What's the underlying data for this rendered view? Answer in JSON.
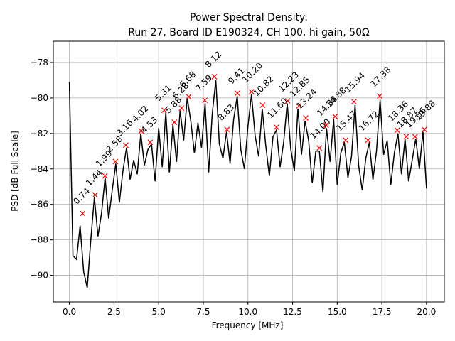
{
  "chart_data": {
    "type": "line",
    "title": [
      "Power Spectral Density:",
      "Run 27, Board ID E190324, CH 100, hi gain, 50Ω"
    ],
    "xlabel": "Frequency [MHz]",
    "ylabel": "PSD [dB Full Scale]",
    "color": "#000000",
    "grid": true,
    "xlim": [
      -0.9,
      21.0
    ],
    "ylim": [
      -91.5,
      -76.8
    ],
    "xticks": [
      {
        "value": 0,
        "label": "0.0"
      },
      2.5,
      {
        "value": 5,
        "label": "5.0"
      },
      7.5,
      {
        "value": 10,
        "label": "10.0"
      },
      12.5,
      {
        "value": 15,
        "label": "15.0"
      },
      17.5,
      {
        "value": 20,
        "label": "20.0"
      }
    ],
    "yticks": [
      {
        "value": -90,
        "label": "−90"
      },
      {
        "value": -88,
        "label": "−88"
      },
      {
        "value": -86,
        "label": "−86"
      },
      {
        "value": -84,
        "label": "−84"
      },
      {
        "value": -82,
        "label": "−82"
      },
      {
        "value": -80,
        "label": "−80"
      },
      {
        "value": -78,
        "label": "−78"
      }
    ],
    "x": [
      0.0,
      0.2,
      0.4,
      0.6,
      0.8,
      1.0,
      1.2,
      1.4,
      1.6,
      1.8,
      2.0,
      2.2,
      2.4,
      2.6,
      2.8,
      3.0,
      3.2,
      3.4,
      3.6,
      3.8,
      4.0,
      4.2,
      4.4,
      4.6,
      4.8,
      5.0,
      5.2,
      5.4,
      5.6,
      5.8,
      6.0,
      6.2,
      6.4,
      6.6,
      6.8,
      7.0,
      7.2,
      7.4,
      7.6,
      7.8,
      8.0,
      8.2,
      8.4,
      8.6,
      8.8,
      9.0,
      9.2,
      9.4,
      9.6,
      9.8,
      10.0,
      10.2,
      10.4,
      10.6,
      10.8,
      11.0,
      11.2,
      11.4,
      11.6,
      11.8,
      12.0,
      12.2,
      12.4,
      12.6,
      12.8,
      13.0,
      13.2,
      13.4,
      13.6,
      13.8,
      14.0,
      14.2,
      14.4,
      14.6,
      14.8,
      15.0,
      15.2,
      15.4,
      15.6,
      15.8,
      16.0,
      16.2,
      16.4,
      16.6,
      16.8,
      17.0,
      17.2,
      17.4,
      17.6,
      17.8,
      18.0,
      18.2,
      18.4,
      18.6,
      18.8,
      19.0,
      19.2,
      19.4,
      19.6,
      19.8,
      20.0
    ],
    "values": [
      -79.1,
      -88.9,
      -89.1,
      -87.2,
      -89.8,
      -90.7,
      -88.0,
      -85.6,
      -87.8,
      -86.5,
      -84.5,
      -86.8,
      -85.2,
      -83.7,
      -85.9,
      -84.1,
      -82.8,
      -84.6,
      -83.5,
      -84.3,
      -82.0,
      -83.8,
      -82.9,
      -82.6,
      -84.7,
      -81.7,
      -83.9,
      -80.8,
      -84.2,
      -81.5,
      -83.6,
      -80.7,
      -82.4,
      -80.0,
      -81.3,
      -83.1,
      -81.4,
      -82.8,
      -80.3,
      -84.2,
      -80.9,
      -79.0,
      -82.6,
      -83.4,
      -81.9,
      -83.7,
      -81.2,
      -79.9,
      -82.9,
      -84.0,
      -81.6,
      -79.8,
      -82.1,
      -83.3,
      -80.6,
      -82.7,
      -84.4,
      -82.2,
      -81.8,
      -83.9,
      -82.5,
      -80.3,
      -82.9,
      -84.1,
      -80.6,
      -83.2,
      -81.3,
      -82.4,
      -84.8,
      -83.0,
      -83.0,
      -85.3,
      -81.7,
      -83.6,
      -81.2,
      -84.9,
      -83.1,
      -82.5,
      -84.5,
      -83.3,
      -80.4,
      -83.8,
      -85.2,
      -83.4,
      -82.5,
      -84.6,
      -83.0,
      -80.1,
      -83.2,
      -82.4,
      -84.9,
      -83.1,
      -82.0,
      -84.3,
      -82.3,
      -84.7,
      -83.5,
      -82.3,
      -84.0,
      -81.9,
      -85.1
    ],
    "peaks": {
      "color": "#ff0000",
      "marker": "x",
      "x": [
        0.74,
        1.44,
        1.99,
        2.58,
        3.16,
        4.02,
        4.53,
        5.31,
        5.88,
        6.28,
        6.68,
        7.59,
        8.12,
        8.83,
        9.41,
        10.2,
        10.82,
        11.6,
        12.23,
        12.85,
        13.24,
        14.0,
        14.38,
        14.88,
        15.47,
        15.94,
        16.72,
        17.38,
        18.36,
        18.87,
        19.36,
        19.88
      ],
      "values": [
        -86.51,
        -85.47,
        -84.39,
        -83.58,
        -82.66,
        -81.86,
        -82.5,
        -80.69,
        -81.37,
        -80.57,
        -79.93,
        -80.13,
        -78.8,
        -81.78,
        -79.73,
        -79.65,
        -80.41,
        -81.65,
        -80.17,
        -80.45,
        -81.13,
        -82.82,
        -81.53,
        -81.05,
        -82.38,
        -80.21,
        -82.38,
        -79.89,
        -81.82,
        -82.18,
        -82.18,
        -81.78
      ],
      "labels": [
        "0.74",
        "1.44",
        "1.99",
        "2.58",
        "3.16",
        "4.02",
        "4.53",
        "5.31",
        "5.88",
        "6.28",
        "6.68",
        "7.59",
        "8.12",
        "8.83",
        "9.41",
        "10.20",
        "10.82",
        "11.60",
        "12.23",
        "12.85",
        "13.24",
        "14.00",
        "14.38",
        "14.88",
        "15.47",
        "15.94",
        "16.72",
        "17.38",
        "18.36",
        "18.87",
        "19.36",
        "19.88"
      ]
    }
  }
}
